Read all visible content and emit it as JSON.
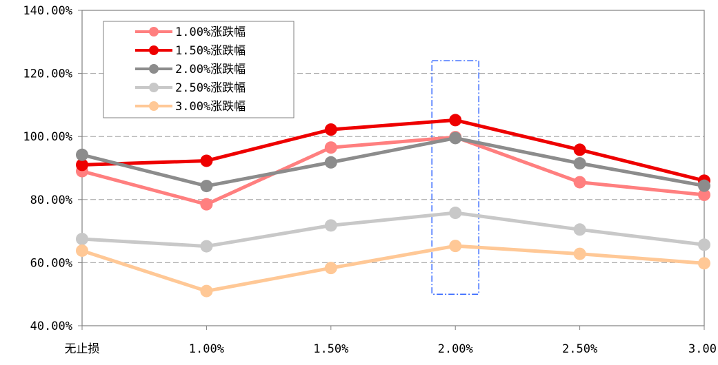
{
  "chart_data": {
    "type": "line",
    "title": "",
    "xlabel": "",
    "ylabel": "",
    "categories": [
      "无止损",
      "1.00%",
      "1.50%",
      "2.00%",
      "2.50%",
      "3.00"
    ],
    "ylim": [
      40,
      140
    ],
    "yticks": [
      40,
      60,
      80,
      100,
      120,
      140
    ],
    "ytick_labels": [
      "40.00%",
      "60.00%",
      "80.00%",
      "100.00%",
      "120.00%",
      "140.00%"
    ],
    "grid": "horizontal-dashed",
    "legend_position": "top-left",
    "series": [
      {
        "name": "1.00%涨跌幅",
        "color": "#FF7F7F",
        "values": [
          89.0,
          78.5,
          96.5,
          99.8,
          85.5,
          81.5
        ]
      },
      {
        "name": "1.50%涨跌幅",
        "color": "#EE0000",
        "values": [
          91.0,
          92.3,
          102.2,
          105.2,
          95.8,
          86.0
        ]
      },
      {
        "name": "2.00%涨跌幅",
        "color": "#8C8C8C",
        "values": [
          94.2,
          84.3,
          91.8,
          99.5,
          91.5,
          84.4
        ]
      },
      {
        "name": "2.50%涨跌幅",
        "color": "#C8C8C8",
        "values": [
          67.5,
          65.2,
          71.8,
          75.8,
          70.5,
          65.7
        ]
      },
      {
        "name": "3.00%涨跌幅",
        "color": "#FFC896",
        "values": [
          63.8,
          51.0,
          58.3,
          65.3,
          62.8,
          59.8
        ]
      }
    ],
    "annotation": {
      "type": "highlight-box",
      "category": "2.00%",
      "y_range": [
        50,
        124
      ],
      "color": "#3366FF",
      "style": "dash-dot"
    }
  }
}
